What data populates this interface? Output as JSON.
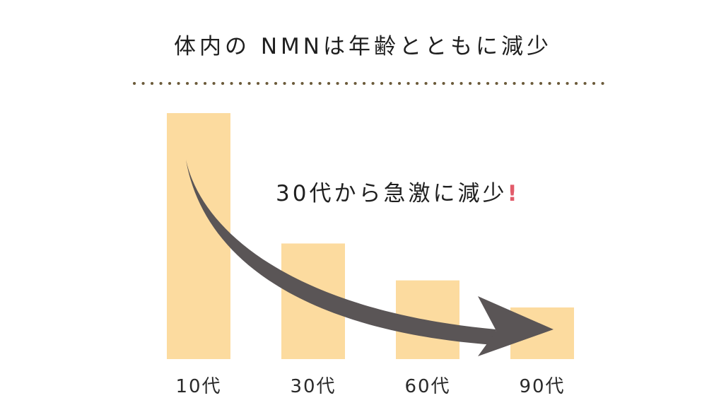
{
  "title": "体内の NMNは年齢とともに減少",
  "annotation": {
    "text": "30代から急激に減少",
    "mark": "!",
    "mark_color": "#e25b6a"
  },
  "colors": {
    "bar": "#fcdb9f",
    "arrow": "#5a5556",
    "divider": "#6b5a3a"
  },
  "chart_data": {
    "type": "bar",
    "title": "体内の NMNは年齢とともに減少",
    "categories": [
      "10代",
      "30代",
      "60代",
      "90代"
    ],
    "values": [
      100,
      47,
      32,
      21
    ],
    "ylim": [
      0,
      100
    ],
    "xlabel": "",
    "ylabel": "",
    "grid": false,
    "legend": "none"
  }
}
